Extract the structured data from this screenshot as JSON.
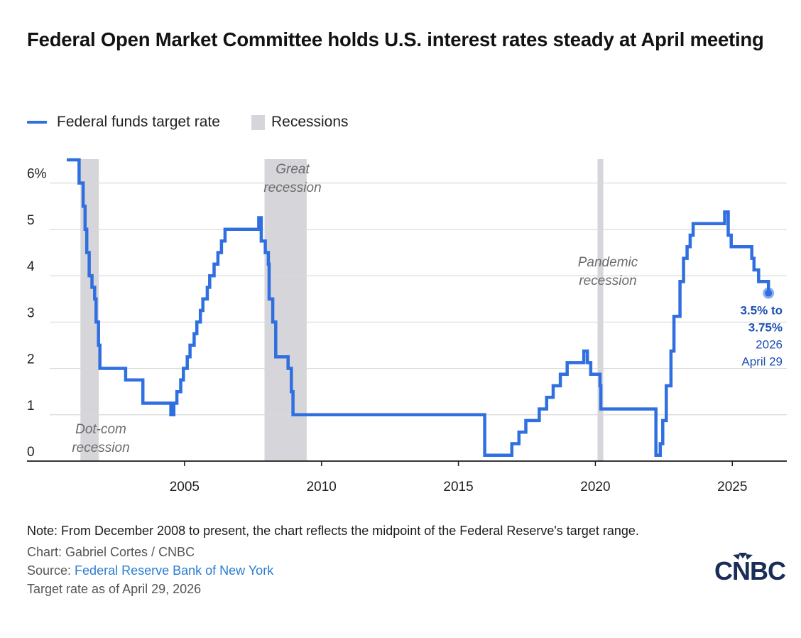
{
  "title": "Federal Open Market Committee holds U.S. interest rates steady at April meeting",
  "legend": {
    "line_label": "Federal funds target rate",
    "area_label": "Recessions"
  },
  "colors": {
    "line": "#2f6fe0",
    "recession": "#d6d6da",
    "grid": "#d9d9d9",
    "end_label": "#1d4fb3"
  },
  "chart_data": {
    "type": "line",
    "title": "Federal Open Market Committee holds U.S. interest rates steady at April meeting",
    "xlabel": "",
    "ylabel": "",
    "xlim": [
      2000.7,
      2026.6
    ],
    "ylim": [
      0,
      6.5
    ],
    "y_ticks": [
      {
        "value": 0,
        "label": "0"
      },
      {
        "value": 1,
        "label": "1"
      },
      {
        "value": 2,
        "label": "2"
      },
      {
        "value": 3,
        "label": "3"
      },
      {
        "value": 4,
        "label": "4"
      },
      {
        "value": 5,
        "label": "5"
      },
      {
        "value": 6,
        "label": "6%"
      }
    ],
    "x_ticks": [
      {
        "value": 2005,
        "label": "2005"
      },
      {
        "value": 2010,
        "label": "2010"
      },
      {
        "value": 2015,
        "label": "2015"
      },
      {
        "value": 2020,
        "label": "2020"
      },
      {
        "value": 2025,
        "label": "2025"
      }
    ],
    "grid": true,
    "legend_position": "top-left",
    "series": [
      {
        "name": "Federal funds target rate",
        "step": true,
        "x": [
          2001.2,
          2001.1,
          2001.15,
          2001.3,
          2001.37,
          2001.43,
          2001.52,
          2001.62,
          2001.72,
          2001.77,
          2001.86,
          2001.91,
          2002.85,
          2003.48,
          2004.5,
          2004.61,
          2004.72,
          2004.86,
          2004.96,
          2005.1,
          2005.2,
          2005.35,
          2005.45,
          2005.58,
          2005.67,
          2005.83,
          2005.92,
          2006.08,
          2006.22,
          2006.35,
          2006.48,
          2007.71,
          2007.8,
          2007.95,
          2008.06,
          2008.09,
          2008.22,
          2008.33,
          2008.78,
          2008.9,
          2008.96,
          2015.96,
          2016.95,
          2017.21,
          2017.46,
          2017.95,
          2018.22,
          2018.46,
          2018.72,
          2018.97,
          2019.58,
          2019.71,
          2019.83,
          2020.17,
          2020.2,
          2022.21,
          2022.37,
          2022.46,
          2022.59,
          2022.76,
          2022.87,
          2023.09,
          2023.22,
          2023.35,
          2023.46,
          2023.57,
          2024.72,
          2024.85,
          2024.96,
          2025.71,
          2025.79,
          2025.96,
          2026.32
        ],
        "y": [
          6.5,
          6.5,
          6.0,
          5.5,
          5.0,
          4.5,
          4.0,
          3.75,
          3.5,
          3.0,
          2.5,
          2.0,
          1.75,
          1.25,
          1.0,
          1.25,
          1.5,
          1.75,
          2.0,
          2.25,
          2.5,
          2.75,
          3.0,
          3.25,
          3.5,
          3.75,
          4.0,
          4.25,
          4.5,
          4.75,
          5.0,
          5.25,
          4.75,
          4.5,
          4.25,
          3.5,
          3.0,
          2.25,
          2.0,
          1.5,
          1.0,
          0.125,
          0.375,
          0.625,
          0.875,
          1.125,
          1.375,
          1.625,
          1.875,
          2.125,
          2.375,
          2.125,
          1.875,
          1.625,
          1.125,
          0.125,
          0.375,
          0.875,
          1.625,
          2.375,
          3.125,
          3.875,
          4.375,
          4.625,
          4.875,
          5.125,
          5.375,
          4.875,
          4.625,
          4.375,
          4.125,
          3.875,
          3.625
        ]
      }
    ],
    "recessions": [
      {
        "start": 2001.2,
        "end": 2001.87,
        "label_line1": "Dot-com",
        "label_line2": "recession"
      },
      {
        "start": 2007.92,
        "end": 2009.46,
        "label_line1": "Great",
        "label_line2": "recession"
      },
      {
        "start": 2020.08,
        "end": 2020.29,
        "label_line1": "Pandemic",
        "label_line2": "recession"
      }
    ],
    "end_point": {
      "x": 2026.32,
      "y": 3.625,
      "label_line1": "3.5% to",
      "label_line2": "3.75%",
      "label_line3": "2026",
      "label_line4": "April 29"
    }
  },
  "footer": {
    "note": "Note: From December 2008 to present, the chart reflects the midpoint of the Federal Reserve's target range.",
    "credit": "Chart: Gabriel Cortes / CNBC",
    "source_prefix": "Source: ",
    "source_link": "Federal Reserve Bank of New York",
    "as_of": "Target rate as of April 29, 2026"
  },
  "logo": {
    "text": "CNBC",
    "icon": "cnbc-peacock-logo-icon"
  }
}
